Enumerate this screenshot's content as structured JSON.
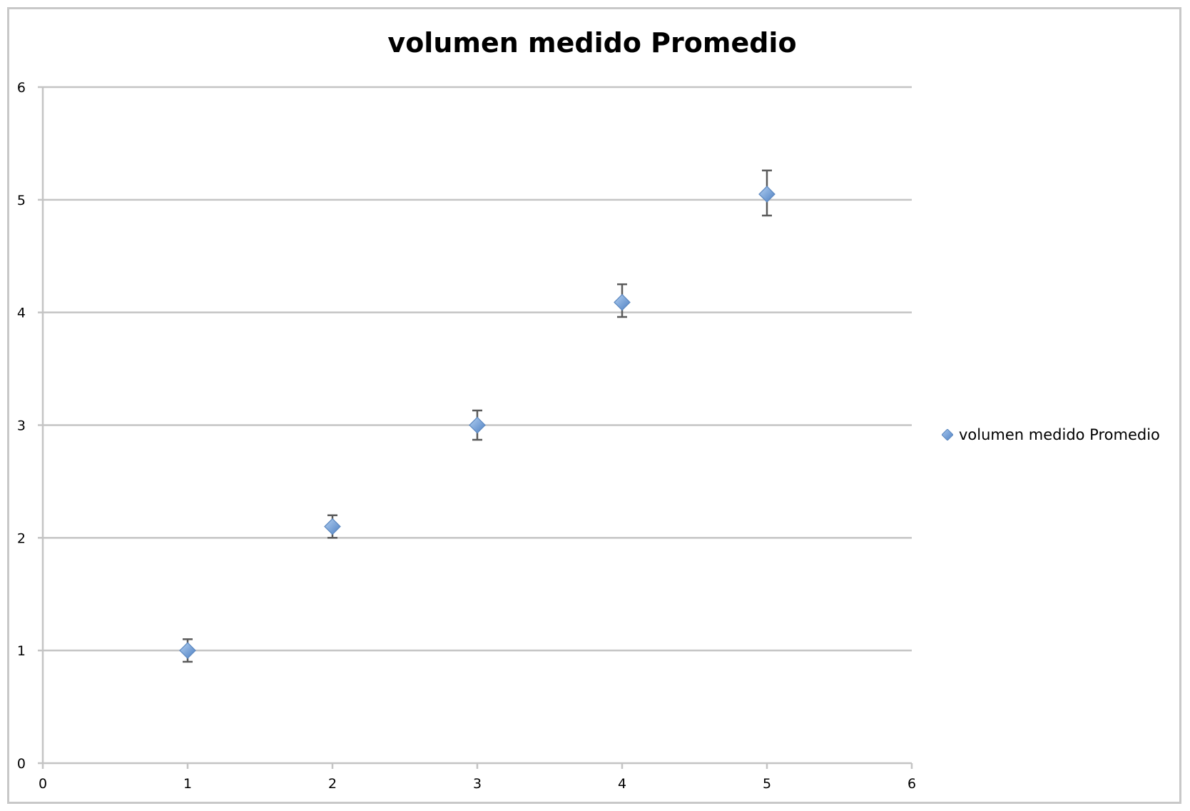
{
  "chart_data": {
    "type": "scatter",
    "title": "volumen medido Promedio",
    "xlabel": "",
    "ylabel": "",
    "xlim": [
      0,
      6
    ],
    "ylim": [
      0,
      6
    ],
    "x_ticks": [
      "0",
      "1",
      "2",
      "3",
      "4",
      "5",
      "6"
    ],
    "y_ticks": [
      "0",
      "1",
      "2",
      "3",
      "4",
      "5",
      "6"
    ],
    "grid": "horizontal",
    "legend": "right",
    "series": [
      {
        "name": "volumen medido Promedio",
        "color": "#6f9fd8",
        "points": [
          {
            "x": 1,
            "y": 1.0,
            "err_low": 0.1,
            "err_high": 0.1
          },
          {
            "x": 2,
            "y": 2.1,
            "err_low": 0.1,
            "err_high": 0.1
          },
          {
            "x": 3,
            "y": 3.0,
            "err_low": 0.13,
            "err_high": 0.13
          },
          {
            "x": 4,
            "y": 4.09,
            "err_low": 0.13,
            "err_high": 0.16
          },
          {
            "x": 5,
            "y": 5.05,
            "err_low": 0.19,
            "err_high": 0.21
          }
        ]
      }
    ]
  }
}
